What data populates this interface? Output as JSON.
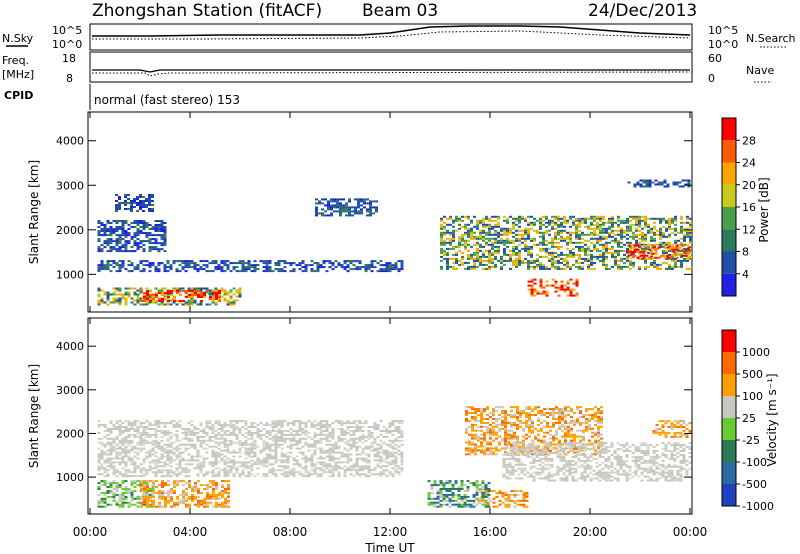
{
  "header": {
    "station": "Zhongshan Station (fitACF)",
    "beam": "Beam 03",
    "date": "24/Dec/2013"
  },
  "status_panels": {
    "nsky_label": "N.Sky",
    "nsky_tick_top": "10^5",
    "nsky_tick_bottom": "10^0",
    "nsearch_label": "N.Search",
    "nsearch_tick_top": "10^5",
    "nsearch_tick_bottom": "10^0",
    "freq_label": "Freq.",
    "freq_unit": "[MHz]",
    "freq_tick_top": "18",
    "freq_tick_bottom": "8",
    "nave_label": "Nave",
    "nave_tick_top": "60",
    "nave_tick_bottom": "0",
    "cpid_label": "CPID",
    "cpid_value": "normal (fast stereo) 153"
  },
  "colors": {
    "power": [
      "#1f1fe6",
      "#1f4fa6",
      "#2b7a5a",
      "#4aa04a",
      "#c8c81e",
      "#ffa500",
      "#ff5a00",
      "#ff0000"
    ],
    "velocity": [
      "#2040c0",
      "#2a6aa0",
      "#2a7a55",
      "#66cc33",
      "#c8c8c0",
      "#ffa000",
      "#ff6a00",
      "#ff0000"
    ]
  },
  "chart_data": [
    {
      "type": "heatmap",
      "name": "power",
      "ylabel": "Slant Range [km]",
      "y_ticks": [
        "1000",
        "2000",
        "3000",
        "4000"
      ],
      "ylim": [
        200,
        4600
      ],
      "x_ticks": [
        "00:00",
        "04:00",
        "08:00",
        "12:00",
        "16:00",
        "20:00",
        "00:00"
      ],
      "xlabel": "Time UT",
      "colorbar": {
        "label": "Power [dB]",
        "ticks": [
          "4",
          "8",
          "12",
          "16",
          "20",
          "24",
          "28"
        ],
        "range": [
          0,
          30
        ]
      },
      "patches": [
        {
          "t0": 0.3,
          "t1": 6.0,
          "r0": 300,
          "r1": 700,
          "level": "mid"
        },
        {
          "t0": 2.0,
          "t1": 5.2,
          "r0": 380,
          "r1": 640,
          "level": "high"
        },
        {
          "t0": 0.3,
          "t1": 12.5,
          "r0": 1050,
          "r1": 1300,
          "level": "low"
        },
        {
          "t0": 0.3,
          "t1": 3.0,
          "r0": 1500,
          "r1": 2200,
          "level": "low"
        },
        {
          "t0": 1.0,
          "t1": 2.5,
          "r0": 2400,
          "r1": 2800,
          "level": "low"
        },
        {
          "t0": 9.0,
          "t1": 11.5,
          "r0": 2300,
          "r1": 2700,
          "level": "low"
        },
        {
          "t0": 14.0,
          "t1": 24.0,
          "r0": 1100,
          "r1": 2300,
          "level": "mid"
        },
        {
          "t0": 17.5,
          "t1": 19.5,
          "r0": 500,
          "r1": 900,
          "level": "high"
        },
        {
          "t0": 21.5,
          "t1": 24.0,
          "r0": 1350,
          "r1": 1650,
          "level": "high"
        },
        {
          "t0": 21.5,
          "t1": 24.0,
          "r0": 2950,
          "r1": 3100,
          "level": "low"
        }
      ]
    },
    {
      "type": "heatmap",
      "name": "velocity",
      "ylabel": "Slant Range [km]",
      "y_ticks": [
        "1000",
        "2000",
        "3000",
        "4000"
      ],
      "ylim": [
        200,
        4600
      ],
      "x_ticks": [
        "00:00",
        "04:00",
        "08:00",
        "12:00",
        "16:00",
        "20:00",
        "00:00"
      ],
      "xlabel": "Time UT",
      "colorbar": {
        "label": "Velocity [m s⁻¹]",
        "ticks": [
          "1000",
          "500",
          "100",
          "25",
          "-25",
          "-100",
          "-500",
          "-1000"
        ]
      },
      "patches": [
        {
          "t0": 0.3,
          "t1": 12.5,
          "r0": 1000,
          "r1": 2300,
          "level": "zero"
        },
        {
          "t0": 0.3,
          "t1": 2.5,
          "r0": 300,
          "r1": 900,
          "level": "green"
        },
        {
          "t0": 2.0,
          "t1": 5.5,
          "r0": 300,
          "r1": 900,
          "level": "orange"
        },
        {
          "t0": 15.0,
          "t1": 20.5,
          "r0": 1500,
          "r1": 2600,
          "level": "orange"
        },
        {
          "t0": 15.5,
          "t1": 17.5,
          "r0": 300,
          "r1": 700,
          "level": "orange"
        },
        {
          "t0": 13.5,
          "t1": 16.0,
          "r0": 300,
          "r1": 900,
          "level": "teal"
        },
        {
          "t0": 16.5,
          "t1": 24.0,
          "r0": 900,
          "r1": 1800,
          "level": "zero"
        },
        {
          "t0": 22.5,
          "t1": 24.0,
          "r0": 1900,
          "r1": 2300,
          "level": "orange"
        }
      ]
    }
  ]
}
